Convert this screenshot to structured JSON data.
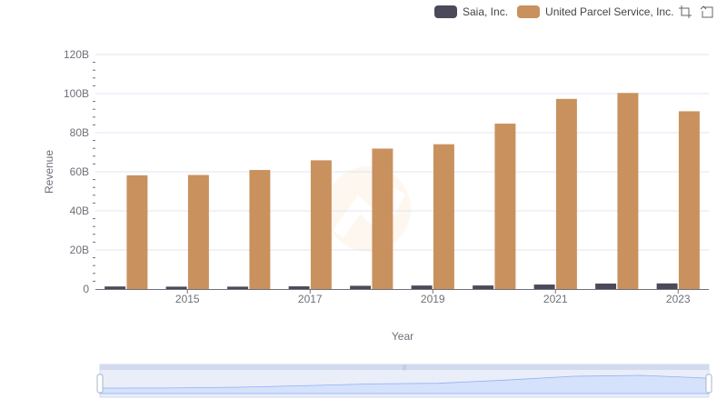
{
  "chart_data": {
    "type": "bar",
    "title": "",
    "xlabel": "Year",
    "ylabel": "Revenue",
    "categories": [
      "2014",
      "2015",
      "2016",
      "2017",
      "2018",
      "2019",
      "2020",
      "2021",
      "2022",
      "2023"
    ],
    "x_tick_labels": [
      "2015",
      "2017",
      "2019",
      "2021",
      "2023"
    ],
    "y_tick_labels": [
      "0",
      "20B",
      "40B",
      "60B",
      "80B",
      "100B",
      "120B"
    ],
    "ylim": [
      0,
      120000000000
    ],
    "y_ticks": [
      0,
      20000000000,
      40000000000,
      60000000000,
      80000000000,
      100000000000,
      120000000000
    ],
    "grid": true,
    "legend_position": "top-right",
    "series": [
      {
        "name": "Saia, Inc.",
        "color": "#4a4a5a",
        "values": [
          1300000000,
          1220000000,
          1220000000,
          1380000000,
          1650000000,
          1790000000,
          1820000000,
          2290000000,
          2790000000,
          2880000000
        ]
      },
      {
        "name": "United Parcel Service, Inc.",
        "color": "#c9915e",
        "values": [
          58200000000,
          58360000000,
          60910000000,
          65870000000,
          71860000000,
          74090000000,
          84630000000,
          97290000000,
          100340000000,
          90960000000
        ]
      }
    ]
  },
  "toolbox": {
    "zoom_icon": "zoom-icon",
    "restore_icon": "restore-icon"
  }
}
